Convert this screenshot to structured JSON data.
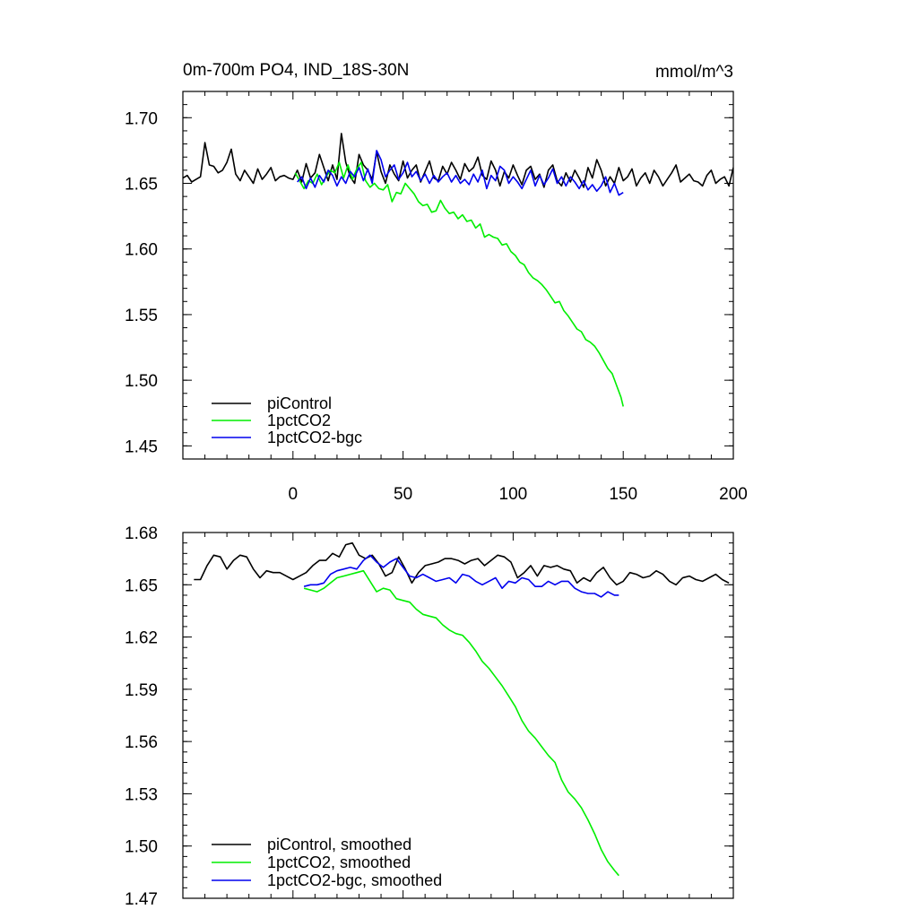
{
  "chart_data": [
    {
      "type": "line",
      "title": "0m-700m PO4, IND_18S-30N",
      "units": "mmol/m^3",
      "xlim": [
        -50,
        200
      ],
      "ylim": [
        1.44,
        1.72
      ],
      "x_ticks": [
        0,
        50,
        100,
        150,
        200
      ],
      "y_ticks": [
        1.45,
        1.5,
        1.55,
        1.6,
        1.65,
        1.7
      ],
      "y_tick_labels": [
        "1.45",
        "1.50",
        "1.55",
        "1.60",
        "1.65",
        "1.70"
      ],
      "x_tick_labels": [
        "0",
        "50",
        "100",
        "150",
        "200"
      ],
      "legend_position": "bottom-left",
      "grid": false,
      "series": [
        {
          "name": "piControl",
          "color": "#000000",
          "x": [
            -50,
            -48,
            -46,
            -44,
            -42,
            -40,
            -38,
            -36,
            -34,
            -32,
            -30,
            -28,
            -26,
            -24,
            -22,
            -20,
            -18,
            -16,
            -14,
            -12,
            -10,
            -8,
            -6,
            -4,
            -2,
            0,
            2,
            4,
            6,
            8,
            10,
            12,
            14,
            16,
            18,
            20,
            22,
            24,
            26,
            28,
            30,
            32,
            34,
            36,
            38,
            40,
            42,
            44,
            46,
            48,
            50,
            52,
            54,
            56,
            58,
            60,
            62,
            64,
            66,
            68,
            70,
            72,
            74,
            76,
            78,
            80,
            82,
            84,
            86,
            88,
            90,
            92,
            94,
            96,
            98,
            100,
            102,
            104,
            106,
            108,
            110,
            112,
            114,
            116,
            118,
            120,
            122,
            124,
            126,
            128,
            130,
            132,
            134,
            136,
            138,
            140,
            142,
            144,
            146,
            148,
            150,
            152,
            154,
            156,
            158,
            160,
            162,
            164,
            166,
            168,
            170,
            172,
            174,
            176,
            178,
            180,
            182,
            184,
            186,
            188,
            190,
            192,
            194,
            196,
            198,
            200
          ],
          "y": [
            1.654,
            1.656,
            1.651,
            1.653,
            1.655,
            1.681,
            1.664,
            1.663,
            1.658,
            1.66,
            1.666,
            1.676,
            1.657,
            1.652,
            1.66,
            1.655,
            1.65,
            1.661,
            1.653,
            1.657,
            1.662,
            1.652,
            1.655,
            1.656,
            1.654,
            1.653,
            1.66,
            1.651,
            1.665,
            1.654,
            1.658,
            1.672,
            1.662,
            1.652,
            1.664,
            1.653,
            1.688,
            1.666,
            1.655,
            1.65,
            1.672,
            1.664,
            1.66,
            1.653,
            1.674,
            1.659,
            1.65,
            1.664,
            1.657,
            1.652,
            1.667,
            1.654,
            1.66,
            1.664,
            1.651,
            1.659,
            1.667,
            1.654,
            1.652,
            1.663,
            1.657,
            1.666,
            1.66,
            1.653,
            1.665,
            1.659,
            1.662,
            1.67,
            1.656,
            1.653,
            1.667,
            1.66,
            1.648,
            1.659,
            1.654,
            1.664,
            1.656,
            1.649,
            1.66,
            1.663,
            1.653,
            1.657,
            1.647,
            1.66,
            1.664,
            1.652,
            1.648,
            1.658,
            1.651,
            1.66,
            1.654,
            1.647,
            1.662,
            1.654,
            1.668,
            1.66,
            1.648,
            1.655,
            1.65,
            1.662,
            1.652,
            1.655,
            1.661,
            1.648,
            1.654,
            1.658,
            1.65,
            1.66,
            1.655,
            1.648,
            1.653,
            1.658,
            1.664,
            1.651,
            1.654,
            1.657,
            1.652,
            1.651,
            1.648,
            1.656,
            1.66,
            1.65,
            1.653,
            1.655,
            1.648,
            1.662
          ]
        },
        {
          "name": "1pctCO2",
          "color": "#00ee00",
          "x": [
            1,
            3,
            5,
            7,
            9,
            11,
            13,
            15,
            17,
            19,
            21,
            23,
            25,
            27,
            29,
            31,
            33,
            35,
            37,
            39,
            41,
            43,
            45,
            47,
            49,
            51,
            53,
            55,
            57,
            59,
            61,
            63,
            65,
            67,
            69,
            71,
            73,
            75,
            77,
            79,
            81,
            83,
            85,
            87,
            89,
            91,
            93,
            95,
            97,
            99,
            101,
            103,
            105,
            107,
            109,
            111,
            113,
            115,
            117,
            119,
            121,
            123,
            125,
            127,
            129,
            131,
            133,
            135,
            137,
            139,
            141,
            143,
            145,
            147,
            149,
            150
          ],
          "y": [
            1.658,
            1.652,
            1.646,
            1.652,
            1.65,
            1.657,
            1.649,
            1.655,
            1.66,
            1.658,
            1.666,
            1.654,
            1.664,
            1.653,
            1.661,
            1.666,
            1.652,
            1.647,
            1.65,
            1.646,
            1.645,
            1.649,
            1.636,
            1.643,
            1.642,
            1.65,
            1.646,
            1.642,
            1.636,
            1.633,
            1.634,
            1.628,
            1.629,
            1.637,
            1.631,
            1.627,
            1.628,
            1.623,
            1.626,
            1.621,
            1.622,
            1.616,
            1.619,
            1.609,
            1.611,
            1.609,
            1.608,
            1.603,
            1.604,
            1.598,
            1.595,
            1.59,
            1.588,
            1.582,
            1.578,
            1.576,
            1.573,
            1.569,
            1.564,
            1.559,
            1.56,
            1.553,
            1.549,
            1.544,
            1.539,
            1.537,
            1.531,
            1.529,
            1.526,
            1.521,
            1.515,
            1.509,
            1.505,
            1.496,
            1.487,
            1.48
          ]
        },
        {
          "name": "1pctCO2-bgc",
          "color": "#0000ee",
          "x": [
            2,
            4,
            6,
            8,
            10,
            12,
            14,
            16,
            18,
            20,
            22,
            24,
            26,
            28,
            30,
            32,
            34,
            36,
            38,
            40,
            42,
            44,
            46,
            48,
            50,
            52,
            54,
            56,
            58,
            60,
            62,
            64,
            66,
            68,
            70,
            72,
            74,
            76,
            78,
            80,
            82,
            84,
            86,
            88,
            90,
            92,
            94,
            96,
            98,
            100,
            102,
            104,
            106,
            108,
            110,
            112,
            114,
            116,
            118,
            120,
            122,
            124,
            126,
            128,
            130,
            132,
            134,
            136,
            138,
            140,
            142,
            144,
            146,
            148,
            150
          ],
          "y": [
            1.651,
            1.655,
            1.646,
            1.654,
            1.647,
            1.656,
            1.651,
            1.66,
            1.656,
            1.648,
            1.655,
            1.65,
            1.659,
            1.655,
            1.662,
            1.652,
            1.661,
            1.65,
            1.675,
            1.668,
            1.655,
            1.66,
            1.664,
            1.653,
            1.658,
            1.666,
            1.655,
            1.659,
            1.652,
            1.657,
            1.65,
            1.656,
            1.651,
            1.655,
            1.658,
            1.651,
            1.656,
            1.65,
            1.653,
            1.649,
            1.657,
            1.651,
            1.66,
            1.646,
            1.656,
            1.652,
            1.663,
            1.66,
            1.65,
            1.655,
            1.651,
            1.646,
            1.653,
            1.66,
            1.648,
            1.656,
            1.649,
            1.654,
            1.661,
            1.65,
            1.655,
            1.648,
            1.655,
            1.651,
            1.646,
            1.652,
            1.645,
            1.649,
            1.644,
            1.648,
            1.655,
            1.643,
            1.65,
            1.641,
            1.643
          ]
        }
      ]
    },
    {
      "type": "line",
      "xlim": [
        -50,
        200
      ],
      "ylim": [
        1.47,
        1.68
      ],
      "y_ticks": [
        1.47,
        1.5,
        1.53,
        1.56,
        1.59,
        1.62,
        1.65,
        1.68
      ],
      "y_tick_labels": [
        "1.47",
        "1.50",
        "1.53",
        "1.56",
        "1.59",
        "1.62",
        "1.65",
        "1.68"
      ],
      "legend_position": "bottom-left",
      "grid": false,
      "series": [
        {
          "name": "piControl, smoothed",
          "color": "#000000",
          "x": [
            -45,
            -42,
            -39,
            -36,
            -33,
            -30,
            -27,
            -24,
            -21,
            -18,
            -15,
            -12,
            -9,
            -6,
            -3,
            0,
            3,
            6,
            9,
            12,
            15,
            18,
            21,
            24,
            27,
            30,
            33,
            36,
            39,
            42,
            45,
            48,
            51,
            54,
            57,
            60,
            63,
            66,
            69,
            72,
            75,
            78,
            81,
            84,
            87,
            90,
            93,
            96,
            99,
            102,
            105,
            108,
            111,
            114,
            117,
            120,
            123,
            126,
            129,
            132,
            135,
            138,
            141,
            144,
            147,
            150,
            153,
            156,
            159,
            162,
            165,
            168,
            171,
            174,
            177,
            180,
            183,
            186,
            189,
            192,
            195,
            198
          ],
          "y": [
            1.653,
            1.653,
            1.661,
            1.667,
            1.666,
            1.659,
            1.664,
            1.667,
            1.666,
            1.659,
            1.654,
            1.658,
            1.657,
            1.657,
            1.655,
            1.653,
            1.655,
            1.657,
            1.661,
            1.664,
            1.664,
            1.668,
            1.666,
            1.673,
            1.674,
            1.667,
            1.665,
            1.667,
            1.662,
            1.655,
            1.657,
            1.666,
            1.659,
            1.651,
            1.657,
            1.661,
            1.662,
            1.663,
            1.665,
            1.665,
            1.664,
            1.662,
            1.664,
            1.665,
            1.661,
            1.664,
            1.667,
            1.666,
            1.663,
            1.654,
            1.657,
            1.661,
            1.655,
            1.661,
            1.66,
            1.661,
            1.659,
            1.658,
            1.651,
            1.654,
            1.652,
            1.657,
            1.66,
            1.654,
            1.65,
            1.652,
            1.657,
            1.656,
            1.654,
            1.655,
            1.658,
            1.656,
            1.652,
            1.65,
            1.654,
            1.655,
            1.653,
            1.652,
            1.654,
            1.656,
            1.653,
            1.651
          ]
        },
        {
          "name": "1pctCO2, smoothed",
          "color": "#00ee00",
          "x": [
            5,
            8,
            11,
            14,
            17,
            20,
            23,
            26,
            29,
            32,
            35,
            38,
            41,
            44,
            47,
            50,
            53,
            56,
            59,
            62,
            65,
            68,
            71,
            74,
            77,
            80,
            83,
            86,
            89,
            92,
            95,
            98,
            101,
            104,
            107,
            110,
            113,
            116,
            119,
            122,
            125,
            128,
            131,
            134,
            137,
            140,
            143,
            146,
            148
          ],
          "y": [
            1.648,
            1.647,
            1.646,
            1.648,
            1.651,
            1.654,
            1.655,
            1.656,
            1.657,
            1.658,
            1.652,
            1.646,
            1.648,
            1.647,
            1.642,
            1.641,
            1.64,
            1.636,
            1.633,
            1.632,
            1.631,
            1.627,
            1.624,
            1.622,
            1.621,
            1.617,
            1.612,
            1.606,
            1.602,
            1.597,
            1.592,
            1.586,
            1.58,
            1.572,
            1.566,
            1.562,
            1.557,
            1.552,
            1.548,
            1.538,
            1.531,
            1.527,
            1.522,
            1.515,
            1.507,
            1.498,
            1.491,
            1.486,
            1.483
          ]
        },
        {
          "name": "1pctCO2-bgc, smoothed",
          "color": "#0000ee",
          "x": [
            5,
            8,
            11,
            14,
            17,
            20,
            23,
            26,
            29,
            32,
            35,
            38,
            41,
            44,
            47,
            50,
            53,
            56,
            59,
            62,
            65,
            68,
            71,
            74,
            77,
            80,
            83,
            86,
            89,
            92,
            95,
            98,
            101,
            104,
            107,
            110,
            113,
            116,
            119,
            122,
            125,
            128,
            131,
            134,
            137,
            140,
            143,
            146,
            148
          ],
          "y": [
            1.649,
            1.65,
            1.65,
            1.651,
            1.656,
            1.658,
            1.659,
            1.66,
            1.659,
            1.664,
            1.667,
            1.663,
            1.66,
            1.663,
            1.665,
            1.66,
            1.655,
            1.654,
            1.656,
            1.654,
            1.652,
            1.653,
            1.654,
            1.651,
            1.656,
            1.655,
            1.652,
            1.65,
            1.652,
            1.654,
            1.648,
            1.652,
            1.651,
            1.654,
            1.653,
            1.649,
            1.649,
            1.652,
            1.65,
            1.652,
            1.652,
            1.648,
            1.646,
            1.645,
            1.645,
            1.643,
            1.646,
            1.644,
            1.644
          ]
        }
      ]
    }
  ]
}
